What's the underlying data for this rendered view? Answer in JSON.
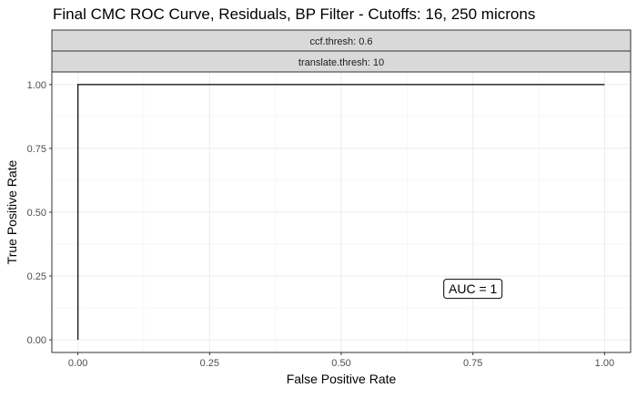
{
  "chart_data": {
    "type": "line",
    "title": "Final CMC ROC Curve, Residuals, BP Filter - Cutoffs: 16, 250 microns",
    "facet_strips": [
      "ccf.thresh: 0.6",
      "translate.thresh: 10"
    ],
    "xlabel": "False Positive Rate",
    "ylabel": "True Positive Rate",
    "xlim": [
      0,
      1
    ],
    "ylim": [
      0,
      1
    ],
    "x_ticks": [
      0.0,
      0.25,
      0.5,
      0.75,
      1.0
    ],
    "y_ticks": [
      0.0,
      0.25,
      0.5,
      0.75,
      1.0
    ],
    "x_tick_labels": [
      "0.00",
      "0.25",
      "0.50",
      "0.75",
      "1.00"
    ],
    "y_tick_labels": [
      "0.00",
      "0.25",
      "0.50",
      "0.75",
      "1.00"
    ],
    "grid": true,
    "series": [
      {
        "x": [
          0.0,
          0.0,
          1.0
        ],
        "y": [
          0.0,
          1.0,
          1.0
        ],
        "color": "#1a1a1a"
      }
    ],
    "annotations": [
      {
        "text": "AUC = 1",
        "x": 0.75,
        "y": 0.2
      }
    ]
  }
}
